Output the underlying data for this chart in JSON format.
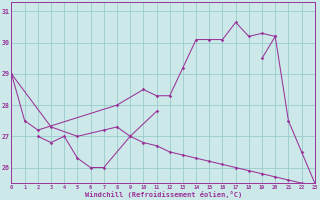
{
  "xlabel": "Windchill (Refroidissement éolien,°C)",
  "bg_color": "#cce8e8",
  "line_color": "#993399",
  "grid_color": "#99cccc",
  "figsize": [
    3.2,
    2.0
  ],
  "dpi": 100,
  "series": [
    {
      "x": [
        0,
        1,
        2,
        8,
        10,
        11,
        12,
        13,
        14,
        15,
        16,
        17,
        18,
        19,
        20
      ],
      "y": [
        29.0,
        27.5,
        27.2,
        28.0,
        28.5,
        28.3,
        28.3,
        29.2,
        30.1,
        30.1,
        30.1,
        30.65,
        30.2,
        30.3,
        30.2
      ]
    },
    {
      "x": [
        2,
        3,
        4,
        5,
        6,
        7,
        9,
        11
      ],
      "y": [
        27.0,
        26.8,
        27.0,
        26.3,
        26.0,
        26.0,
        27.0,
        27.8
      ]
    },
    {
      "x": [
        0,
        3,
        5,
        7,
        8,
        9,
        10,
        11,
        12,
        13,
        14,
        15,
        16,
        17,
        18,
        19,
        20,
        21,
        22,
        23
      ],
      "y": [
        29.0,
        27.3,
        27.0,
        27.2,
        27.3,
        27.0,
        26.8,
        26.7,
        26.5,
        26.4,
        26.3,
        26.2,
        26.1,
        26.0,
        25.9,
        25.8,
        25.7,
        25.6,
        25.5,
        25.4
      ]
    },
    {
      "x": [
        19,
        20,
        21,
        22,
        23
      ],
      "y": [
        29.5,
        30.2,
        27.5,
        26.5,
        25.5
      ]
    }
  ],
  "xlim": [
    0,
    23
  ],
  "ylim": [
    25.5,
    31.3
  ],
  "xticks": [
    0,
    1,
    2,
    3,
    4,
    5,
    6,
    7,
    8,
    9,
    10,
    11,
    12,
    13,
    14,
    15,
    16,
    17,
    18,
    19,
    20,
    21,
    22,
    23
  ],
  "yticks": [
    26,
    27,
    28,
    29,
    30,
    31
  ]
}
